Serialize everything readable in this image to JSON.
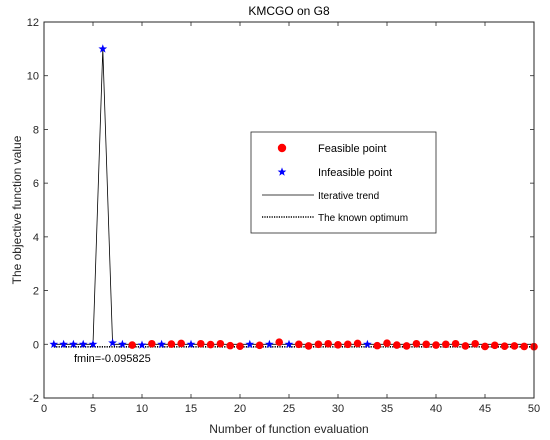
{
  "chart_data": {
    "type": "scatter",
    "title": "KMCGO on G8",
    "xlabel": "Number of function evaluation",
    "ylabel": "The objective function value",
    "xlim": [
      0,
      50
    ],
    "ylim": [
      -2,
      12
    ],
    "xticks": [
      0,
      5,
      10,
      15,
      20,
      25,
      30,
      35,
      40,
      45,
      50
    ],
    "yticks": [
      -2,
      0,
      2,
      4,
      6,
      8,
      10,
      12
    ],
    "grid": false,
    "legend_position": "center-right",
    "known_optimum": -0.095825,
    "annotation": "fmin=-0.095825",
    "series": [
      {
        "name": "Feasible point",
        "marker": "circle",
        "color": "#ff0000",
        "points": [
          [
            9,
            -0.03
          ],
          [
            11,
            0.02
          ],
          [
            13,
            0.01
          ],
          [
            14,
            0.03
          ],
          [
            16,
            0.02
          ],
          [
            17,
            -0.01
          ],
          [
            18,
            0.02
          ],
          [
            19,
            -0.05
          ],
          [
            20,
            -0.07
          ],
          [
            22,
            -0.04
          ],
          [
            24,
            0.08
          ],
          [
            26,
            0.0
          ],
          [
            27,
            -0.06
          ],
          [
            28,
            0.0
          ],
          [
            29,
            0.02
          ],
          [
            30,
            -0.02
          ],
          [
            31,
            0.0
          ],
          [
            32,
            0.03
          ],
          [
            34,
            -0.05
          ],
          [
            35,
            0.04
          ],
          [
            36,
            -0.03
          ],
          [
            37,
            -0.06
          ],
          [
            38,
            0.02
          ],
          [
            39,
            0.0
          ],
          [
            40,
            -0.03
          ],
          [
            41,
            0.0
          ],
          [
            42,
            0.02
          ],
          [
            43,
            -0.06
          ],
          [
            44,
            0.02
          ],
          [
            45,
            -0.08
          ],
          [
            46,
            -0.04
          ],
          [
            47,
            -0.07
          ],
          [
            48,
            -0.06
          ],
          [
            49,
            -0.08
          ],
          [
            50,
            -0.09
          ]
        ]
      },
      {
        "name": "Infeasible point",
        "marker": "star",
        "color": "#0000ff",
        "points": [
          [
            1,
            0.0
          ],
          [
            2,
            0.0
          ],
          [
            3,
            0.0
          ],
          [
            4,
            0.0
          ],
          [
            5,
            0.0
          ],
          [
            6,
            11.0
          ],
          [
            7,
            0.05
          ],
          [
            8,
            0.0
          ],
          [
            10,
            -0.03
          ],
          [
            12,
            0.0
          ],
          [
            15,
            0.0
          ],
          [
            21,
            0.0
          ],
          [
            23,
            0.0
          ],
          [
            25,
            0.0
          ],
          [
            33,
            0.0
          ]
        ]
      },
      {
        "name": "Iterative trend",
        "style": "solid",
        "color": "#000000",
        "points": [
          [
            1,
            0
          ],
          [
            5,
            0
          ],
          [
            6,
            11
          ],
          [
            7,
            0
          ],
          [
            50,
            0
          ]
        ]
      },
      {
        "name": "The known optimum",
        "style": "dotted",
        "color": "#000000",
        "y": -0.095825
      }
    ]
  }
}
